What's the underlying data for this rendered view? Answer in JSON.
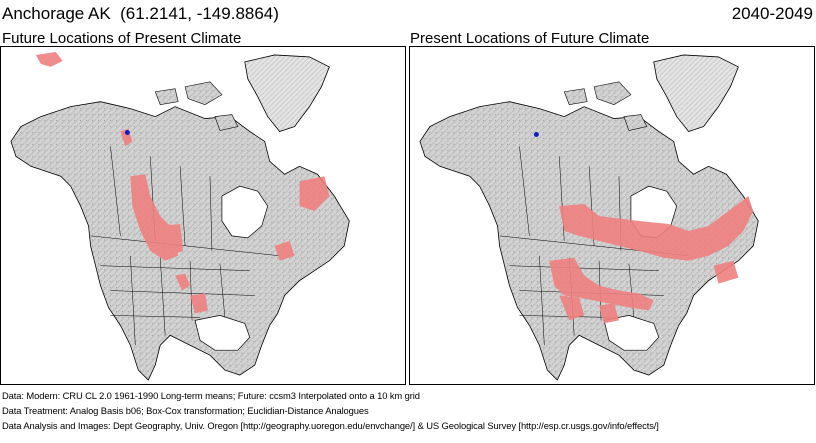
{
  "header": {
    "location": "Anchorage AK  (61.2141, -149.8864)",
    "period": "2040-2049"
  },
  "panels": [
    {
      "title": "Future Locations of Present Climate"
    },
    {
      "title": "Present Locations of Future Climate"
    }
  ],
  "colors": {
    "land": "#cfcfcf",
    "land_relief": "#a9a9a9",
    "ocean": "#ffffff",
    "boundary": "#000000",
    "analogue": "#f08080",
    "location_marker": "#1020c0"
  },
  "legend_notes": {
    "analogue_areas": "pink shading = climate analogue areas",
    "marker": "blue dot = Anchorage AK"
  },
  "footer": {
    "line1": "Data:  Modern: CRU CL 2.0 1961-1990 Long-term means; Future: ccsm3 Interpolated onto a 10 km grid",
    "line2": "Data Treatment:  Analog Basis b06; Box-Cox transformation; Euclidian-Distance Analogues",
    "line3": "Data Analysis and Images:  Dept Geography, Univ. Oregon [http://geography.uoregon.edu/envchange/] & US Geological Survey [http://esp.cr.usgs.gov/info/effects/]"
  }
}
